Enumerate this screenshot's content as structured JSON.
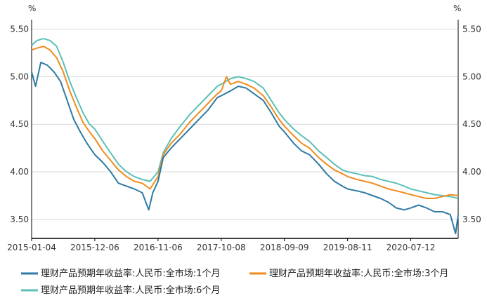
{
  "chart_data": {
    "type": "line",
    "y_unit_left": "%",
    "y_unit_right": "%",
    "ylim": [
      3.3,
      5.6
    ],
    "y_ticks": [
      3.5,
      4.0,
      4.5,
      5.0,
      5.5
    ],
    "y_tick_labels": [
      "3.50",
      "4.00",
      "4.50",
      "5.00",
      "5.50"
    ],
    "x_range": [
      "2015-01-04",
      "2021-03-21"
    ],
    "x_ticks": [
      "2015-01-04",
      "2015-12-06",
      "2016-11-06",
      "2017-10-08",
      "2018-09-09",
      "2019-08-11",
      "2020-07-12"
    ],
    "grid": "horizontal",
    "legend_position": "bottom",
    "series": [
      {
        "name": "理财产品预期年收益率:人民币:全市场:1个月",
        "color": "#2E7BA4",
        "points": [
          [
            "2015-01-04",
            5.05
          ],
          [
            "2015-01-25",
            4.9
          ],
          [
            "2015-02-22",
            5.15
          ],
          [
            "2015-03-29",
            5.12
          ],
          [
            "2015-05-03",
            5.05
          ],
          [
            "2015-06-07",
            4.95
          ],
          [
            "2015-07-12",
            4.75
          ],
          [
            "2015-08-16",
            4.55
          ],
          [
            "2015-09-20",
            4.42
          ],
          [
            "2015-10-25",
            4.3
          ],
          [
            "2015-12-06",
            4.18
          ],
          [
            "2016-01-17",
            4.1
          ],
          [
            "2016-02-28",
            4.0
          ],
          [
            "2016-04-10",
            3.88
          ],
          [
            "2016-05-22",
            3.85
          ],
          [
            "2016-07-03",
            3.82
          ],
          [
            "2016-08-14",
            3.78
          ],
          [
            "2016-09-18",
            3.6
          ],
          [
            "2016-10-09",
            3.78
          ],
          [
            "2016-11-06",
            3.9
          ],
          [
            "2016-12-04",
            4.15
          ],
          [
            "2017-01-15",
            4.25
          ],
          [
            "2017-03-05",
            4.35
          ],
          [
            "2017-04-23",
            4.45
          ],
          [
            "2017-06-11",
            4.55
          ],
          [
            "2017-07-30",
            4.65
          ],
          [
            "2017-09-17",
            4.78
          ],
          [
            "2017-10-08",
            4.8
          ],
          [
            "2017-11-26",
            4.85
          ],
          [
            "2018-01-07",
            4.9
          ],
          [
            "2018-02-18",
            4.88
          ],
          [
            "2018-04-01",
            4.82
          ],
          [
            "2018-05-20",
            4.75
          ],
          [
            "2018-07-01",
            4.62
          ],
          [
            "2018-08-12",
            4.48
          ],
          [
            "2018-09-09",
            4.42
          ],
          [
            "2018-10-28",
            4.3
          ],
          [
            "2018-12-09",
            4.22
          ],
          [
            "2019-01-20",
            4.18
          ],
          [
            "2019-03-10",
            4.08
          ],
          [
            "2019-04-21",
            3.98
          ],
          [
            "2019-06-02",
            3.9
          ],
          [
            "2019-07-14",
            3.85
          ],
          [
            "2019-08-11",
            3.82
          ],
          [
            "2019-09-29",
            3.8
          ],
          [
            "2019-11-10",
            3.78
          ],
          [
            "2019-12-22",
            3.75
          ],
          [
            "2020-02-02",
            3.72
          ],
          [
            "2020-03-15",
            3.68
          ],
          [
            "2020-04-26",
            3.62
          ],
          [
            "2020-06-07",
            3.6
          ],
          [
            "2020-07-12",
            3.62
          ],
          [
            "2020-08-23",
            3.65
          ],
          [
            "2020-10-04",
            3.62
          ],
          [
            "2020-11-15",
            3.58
          ],
          [
            "2020-12-27",
            3.58
          ],
          [
            "2021-02-07",
            3.55
          ],
          [
            "2021-03-07",
            3.35
          ],
          [
            "2021-03-21",
            3.55
          ]
        ]
      },
      {
        "name": "理财产品预期年收益率:人民币:全市场:3个月",
        "color": "#F08C1E",
        "points": [
          [
            "2015-01-04",
            5.28
          ],
          [
            "2015-02-01",
            5.3
          ],
          [
            "2015-03-08",
            5.32
          ],
          [
            "2015-04-12",
            5.28
          ],
          [
            "2015-05-17",
            5.2
          ],
          [
            "2015-06-21",
            5.05
          ],
          [
            "2015-07-26",
            4.85
          ],
          [
            "2015-08-30",
            4.68
          ],
          [
            "2015-10-04",
            4.52
          ],
          [
            "2015-11-08",
            4.42
          ],
          [
            "2015-12-06",
            4.35
          ],
          [
            "2016-01-17",
            4.22
          ],
          [
            "2016-02-28",
            4.12
          ],
          [
            "2016-04-10",
            4.02
          ],
          [
            "2016-05-22",
            3.95
          ],
          [
            "2016-07-03",
            3.9
          ],
          [
            "2016-08-14",
            3.88
          ],
          [
            "2016-09-25",
            3.82
          ],
          [
            "2016-11-06",
            3.95
          ],
          [
            "2016-12-04",
            4.18
          ],
          [
            "2017-01-15",
            4.3
          ],
          [
            "2017-03-05",
            4.4
          ],
          [
            "2017-04-23",
            4.52
          ],
          [
            "2017-06-11",
            4.62
          ],
          [
            "2017-07-30",
            4.72
          ],
          [
            "2017-09-17",
            4.82
          ],
          [
            "2017-10-08",
            4.85
          ],
          [
            "2017-11-05",
            5.0
          ],
          [
            "2017-11-26",
            4.92
          ],
          [
            "2018-01-07",
            4.95
          ],
          [
            "2018-02-18",
            4.92
          ],
          [
            "2018-04-01",
            4.88
          ],
          [
            "2018-05-20",
            4.8
          ],
          [
            "2018-07-01",
            4.68
          ],
          [
            "2018-08-12",
            4.55
          ],
          [
            "2018-09-09",
            4.48
          ],
          [
            "2018-10-28",
            4.38
          ],
          [
            "2018-12-09",
            4.3
          ],
          [
            "2019-01-20",
            4.25
          ],
          [
            "2019-03-10",
            4.15
          ],
          [
            "2019-04-21",
            4.08
          ],
          [
            "2019-06-02",
            4.02
          ],
          [
            "2019-07-14",
            3.98
          ],
          [
            "2019-08-11",
            3.95
          ],
          [
            "2019-09-29",
            3.92
          ],
          [
            "2019-11-10",
            3.9
          ],
          [
            "2019-12-22",
            3.88
          ],
          [
            "2020-02-02",
            3.85
          ],
          [
            "2020-03-15",
            3.82
          ],
          [
            "2020-04-26",
            3.8
          ],
          [
            "2020-06-07",
            3.78
          ],
          [
            "2020-07-12",
            3.76
          ],
          [
            "2020-08-23",
            3.74
          ],
          [
            "2020-10-04",
            3.72
          ],
          [
            "2020-11-15",
            3.72
          ],
          [
            "2020-12-27",
            3.74
          ],
          [
            "2021-02-07",
            3.76
          ],
          [
            "2021-03-21",
            3.75
          ]
        ]
      },
      {
        "name": "理财产品预期年收益率:人民币:全市场:6个月",
        "color": "#5BC0B8",
        "points": [
          [
            "2015-01-04",
            5.33
          ],
          [
            "2015-02-01",
            5.38
          ],
          [
            "2015-03-08",
            5.4
          ],
          [
            "2015-04-12",
            5.38
          ],
          [
            "2015-05-17",
            5.32
          ],
          [
            "2015-06-21",
            5.15
          ],
          [
            "2015-07-26",
            4.95
          ],
          [
            "2015-08-30",
            4.78
          ],
          [
            "2015-10-04",
            4.62
          ],
          [
            "2015-11-08",
            4.5
          ],
          [
            "2015-12-06",
            4.45
          ],
          [
            "2016-01-17",
            4.32
          ],
          [
            "2016-02-28",
            4.2
          ],
          [
            "2016-04-10",
            4.08
          ],
          [
            "2016-05-22",
            4.0
          ],
          [
            "2016-07-03",
            3.95
          ],
          [
            "2016-08-14",
            3.92
          ],
          [
            "2016-09-25",
            3.9
          ],
          [
            "2016-11-06",
            4.0
          ],
          [
            "2016-12-04",
            4.2
          ],
          [
            "2017-01-15",
            4.35
          ],
          [
            "2017-03-05",
            4.48
          ],
          [
            "2017-04-23",
            4.6
          ],
          [
            "2017-06-11",
            4.7
          ],
          [
            "2017-07-30",
            4.8
          ],
          [
            "2017-09-17",
            4.9
          ],
          [
            "2017-10-08",
            4.92
          ],
          [
            "2017-11-26",
            4.98
          ],
          [
            "2018-01-07",
            5.0
          ],
          [
            "2018-02-18",
            4.98
          ],
          [
            "2018-04-01",
            4.95
          ],
          [
            "2018-05-20",
            4.88
          ],
          [
            "2018-07-01",
            4.75
          ],
          [
            "2018-08-12",
            4.62
          ],
          [
            "2018-09-09",
            4.55
          ],
          [
            "2018-10-28",
            4.45
          ],
          [
            "2018-12-09",
            4.38
          ],
          [
            "2019-01-20",
            4.32
          ],
          [
            "2019-03-10",
            4.22
          ],
          [
            "2019-04-21",
            4.15
          ],
          [
            "2019-06-02",
            4.08
          ],
          [
            "2019-07-14",
            4.02
          ],
          [
            "2019-08-11",
            4.0
          ],
          [
            "2019-09-29",
            3.98
          ],
          [
            "2019-11-10",
            3.96
          ],
          [
            "2019-12-22",
            3.95
          ],
          [
            "2020-02-02",
            3.92
          ],
          [
            "2020-03-15",
            3.9
          ],
          [
            "2020-04-26",
            3.88
          ],
          [
            "2020-06-07",
            3.85
          ],
          [
            "2020-07-12",
            3.82
          ],
          [
            "2020-08-23",
            3.8
          ],
          [
            "2020-10-04",
            3.78
          ],
          [
            "2020-11-15",
            3.76
          ],
          [
            "2020-12-27",
            3.75
          ],
          [
            "2021-02-07",
            3.74
          ],
          [
            "2021-03-21",
            3.72
          ]
        ]
      }
    ]
  }
}
